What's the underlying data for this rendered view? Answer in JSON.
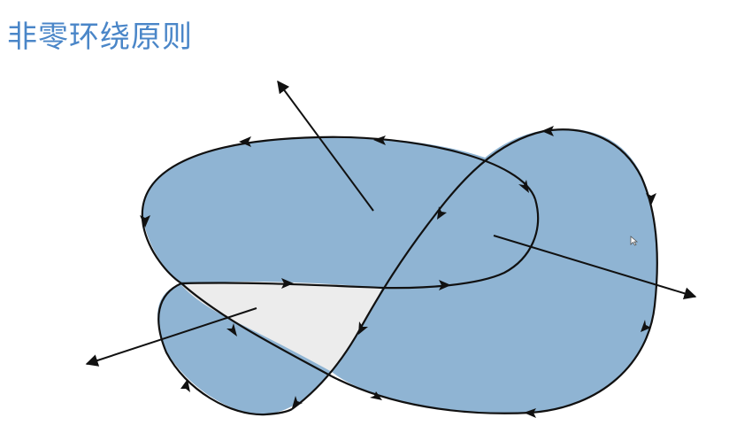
{
  "slide": {
    "title": "非零环绕原则"
  },
  "diagram": {
    "description_name": "nonzero-winding-rule",
    "fill_color": "#8fb4d3",
    "hole_color": "#ececec",
    "stroke_color": "#111111"
  }
}
